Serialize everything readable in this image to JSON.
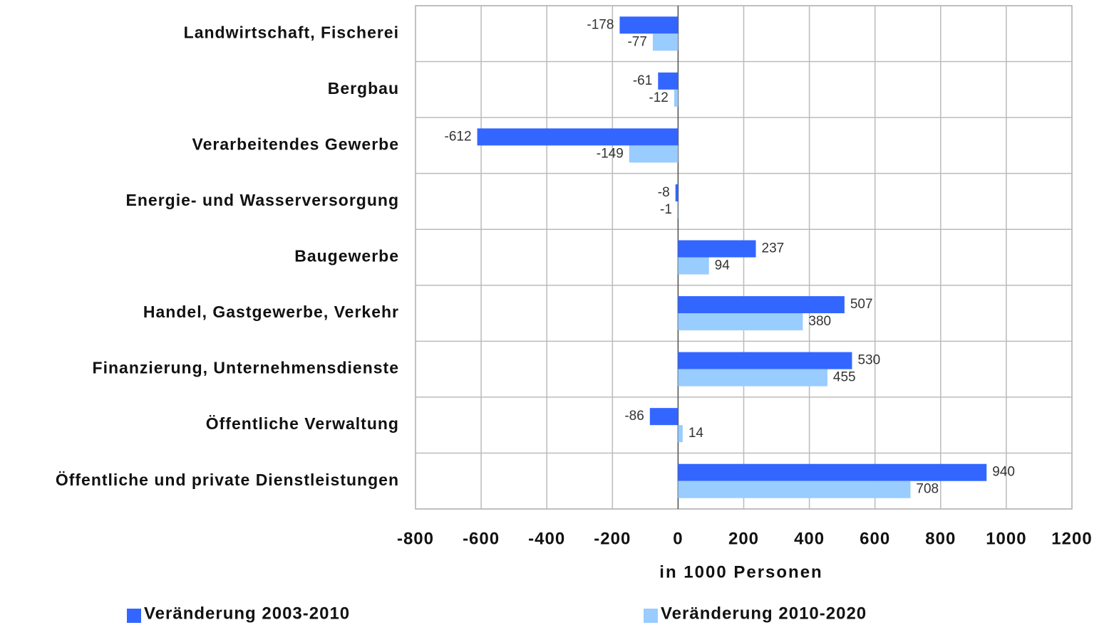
{
  "chart_data": {
    "type": "bar",
    "orientation": "horizontal",
    "x_label": "in 1000 Personen",
    "categories": [
      "Landwirtschaft, Fischerei",
      "Bergbau",
      "Verarbeitendes Gewerbe",
      "Energie- und Wasserversorgung",
      "Baugewerbe",
      "Handel, Gastgewerbe, Verkehr",
      "Finanzierung, Unternehmensdienste",
      "Öffentliche Verwaltung",
      "Öffentliche und private Dienstleistungen"
    ],
    "series": [
      {
        "name": "Veränderung 2003-2010",
        "color": "#3366ff",
        "values": [
          -178,
          -61,
          -612,
          -8,
          237,
          507,
          530,
          -86,
          940
        ]
      },
      {
        "name": "Veränderung 2010-2020",
        "color": "#99ccff",
        "values": [
          -77,
          -12,
          -149,
          -1,
          94,
          380,
          455,
          14,
          708
        ]
      }
    ],
    "xlim": [
      -800,
      1200
    ],
    "xticks": [
      -800,
      -600,
      -400,
      -200,
      0,
      200,
      400,
      600,
      800,
      1000,
      1200
    ],
    "grid": true,
    "legend": "bottom"
  }
}
